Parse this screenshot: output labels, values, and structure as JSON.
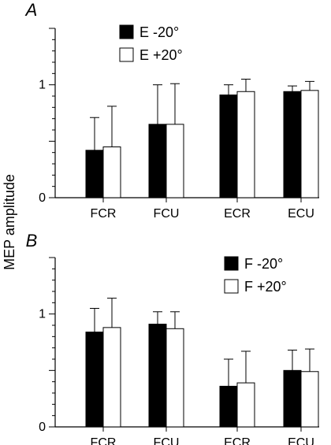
{
  "ylabel": "MEP amplitude",
  "chart_data": [
    {
      "type": "bar",
      "panel_label": "A",
      "categories": [
        "FCR",
        "FCU",
        "ECR",
        "ECU"
      ],
      "ylim": [
        0,
        1.5
      ],
      "yticks": [
        "0",
        "1"
      ],
      "series": [
        {
          "name": "E -20°",
          "fill": "#000000",
          "values": [
            0.42,
            0.65,
            0.91,
            0.94
          ],
          "err": [
            0.29,
            0.35,
            0.09,
            0.05
          ]
        },
        {
          "name": "E +20°",
          "fill": "#ffffff",
          "values": [
            0.45,
            0.65,
            0.94,
            0.95
          ],
          "err": [
            0.36,
            0.36,
            0.11,
            0.08
          ]
        }
      ],
      "legend": "top-center"
    },
    {
      "type": "bar",
      "panel_label": "B",
      "categories": [
        "FCR",
        "FCU",
        "ECR",
        "ECU"
      ],
      "ylim": [
        0,
        1.5
      ],
      "yticks": [
        "0",
        "1"
      ],
      "series": [
        {
          "name": "F -20°",
          "fill": "#000000",
          "values": [
            0.84,
            0.91,
            0.36,
            0.5
          ],
          "err": [
            0.21,
            0.11,
            0.24,
            0.18
          ]
        },
        {
          "name": "F +20°",
          "fill": "#ffffff",
          "values": [
            0.88,
            0.87,
            0.39,
            0.49
          ],
          "err": [
            0.26,
            0.15,
            0.28,
            0.2
          ]
        }
      ],
      "legend": "top-right"
    }
  ]
}
